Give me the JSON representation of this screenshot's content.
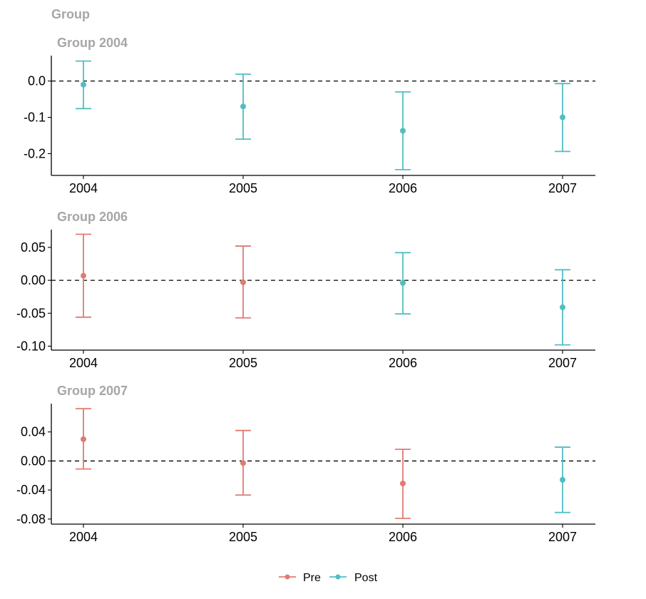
{
  "chart_data": {
    "type": "errorbar",
    "super_title": "Group",
    "colors": {
      "Pre": "#e07b71",
      "Post": "#52bdc2"
    },
    "legend": {
      "position": "bottom",
      "entries": [
        {
          "label": "Pre",
          "color": "#e07b71"
        },
        {
          "label": "Post",
          "color": "#52bdc2"
        }
      ]
    },
    "reference_line": {
      "y": 0,
      "style": "dashed"
    },
    "panels": [
      {
        "title": "Group 2004",
        "x": [
          2004,
          2005,
          2006,
          2007
        ],
        "x_ticks": [
          "2004",
          "2005",
          "2006",
          "2007"
        ],
        "ylim": [
          -0.26,
          0.07
        ],
        "y_ticks": [
          0.0,
          -0.1,
          -0.2
        ],
        "y_tick_labels": [
          "0.0",
          "-0.1",
          "-0.2"
        ],
        "points": [
          {
            "x": 2004,
            "estimate": -0.01,
            "ci_low": -0.076,
            "ci_high": 0.055,
            "period": "Post"
          },
          {
            "x": 2005,
            "estimate": -0.07,
            "ci_low": -0.16,
            "ci_high": 0.019,
            "period": "Post"
          },
          {
            "x": 2006,
            "estimate": -0.137,
            "ci_low": -0.244,
            "ci_high": -0.03,
            "period": "Post"
          },
          {
            "x": 2007,
            "estimate": -0.1,
            "ci_low": -0.194,
            "ci_high": -0.007,
            "period": "Post"
          }
        ]
      },
      {
        "title": "Group 2006",
        "x": [
          2004,
          2005,
          2006,
          2007
        ],
        "x_ticks": [
          "2004",
          "2005",
          "2006",
          "2007"
        ],
        "ylim": [
          -0.106,
          0.077
        ],
        "y_ticks": [
          0.05,
          0.0,
          -0.05,
          -0.1
        ],
        "y_tick_labels": [
          "0.05",
          "0.00",
          "-0.05",
          "-0.10"
        ],
        "points": [
          {
            "x": 2004,
            "estimate": 0.007,
            "ci_low": -0.056,
            "ci_high": 0.07,
            "period": "Pre"
          },
          {
            "x": 2005,
            "estimate": -0.003,
            "ci_low": -0.057,
            "ci_high": 0.052,
            "period": "Pre"
          },
          {
            "x": 2006,
            "estimate": -0.004,
            "ci_low": -0.051,
            "ci_high": 0.042,
            "period": "Post"
          },
          {
            "x": 2007,
            "estimate": -0.041,
            "ci_low": -0.098,
            "ci_high": 0.016,
            "period": "Post"
          }
        ]
      },
      {
        "title": "Group 2007",
        "x": [
          2004,
          2005,
          2006,
          2007
        ],
        "x_ticks": [
          "2004",
          "2005",
          "2006",
          "2007"
        ],
        "ylim": [
          -0.087,
          0.079
        ],
        "y_ticks": [
          0.04,
          0.0,
          -0.04,
          -0.08
        ],
        "y_tick_labels": [
          "0.04",
          "0.00",
          "-0.04",
          "-0.08"
        ],
        "points": [
          {
            "x": 2004,
            "estimate": 0.03,
            "ci_low": -0.011,
            "ci_high": 0.072,
            "period": "Pre"
          },
          {
            "x": 2005,
            "estimate": -0.003,
            "ci_low": -0.047,
            "ci_high": 0.042,
            "period": "Pre"
          },
          {
            "x": 2006,
            "estimate": -0.031,
            "ci_low": -0.079,
            "ci_high": 0.016,
            "period": "Pre"
          },
          {
            "x": 2007,
            "estimate": -0.026,
            "ci_low": -0.071,
            "ci_high": 0.019,
            "period": "Post"
          }
        ]
      }
    ]
  }
}
